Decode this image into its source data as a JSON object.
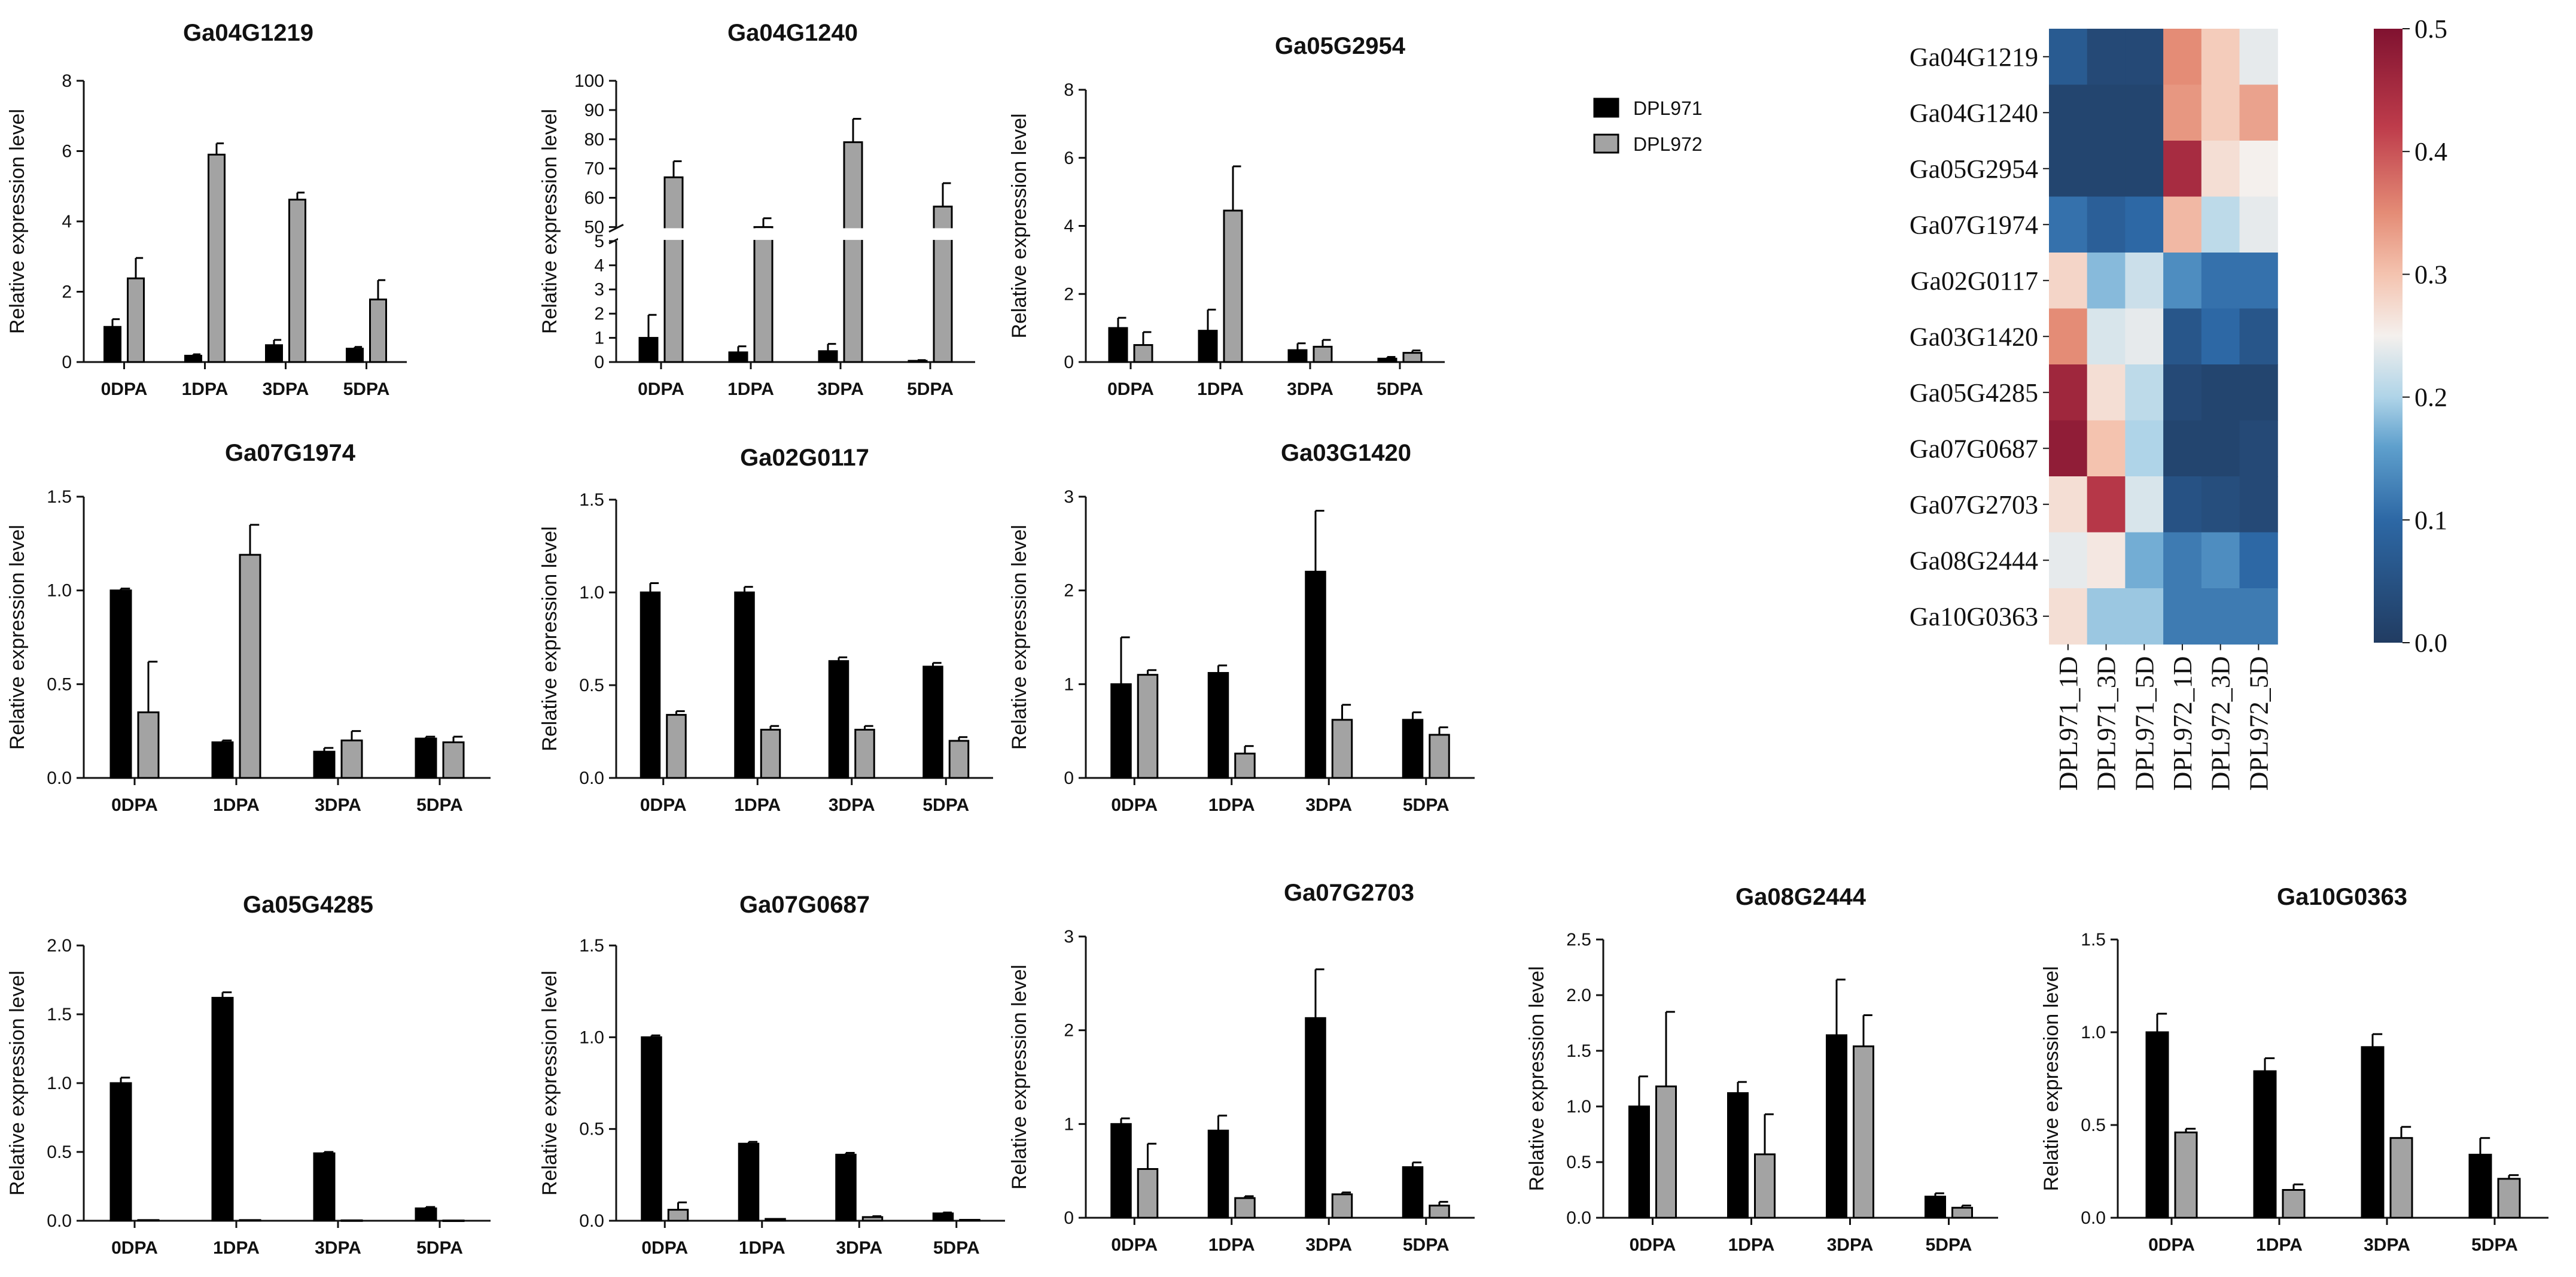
{
  "legend": {
    "series": [
      "DPL971",
      "DPL972"
    ]
  },
  "colors": {
    "DPL971": "#000000",
    "DPL972": "#a3a3a3",
    "axis": "#111111"
  },
  "chart_data": [
    {
      "type": "bar",
      "title": "Ga04G1219",
      "ylabel": "Relative expression level",
      "categories": [
        "0DPA",
        "1DPA",
        "3DPA",
        "5DPA"
      ],
      "ylim": [
        0,
        8
      ],
      "yticks": [
        0,
        2,
        4,
        6,
        8
      ],
      "series": [
        {
          "name": "DPL971",
          "values": [
            1.0,
            0.18,
            0.48,
            0.38
          ],
          "errors": [
            0.22,
            0.04,
            0.15,
            0.05
          ]
        },
        {
          "name": "DPL972",
          "values": [
            2.38,
            5.9,
            4.62,
            1.78
          ],
          "errors": [
            0.58,
            0.32,
            0.2,
            0.55
          ]
        }
      ]
    },
    {
      "type": "bar",
      "title": "Ga04G1240",
      "ylabel": "Relative expression level",
      "categories": [
        "0DPA",
        "1DPA",
        "3DPA",
        "5DPA"
      ],
      "broken_axis": true,
      "lower_ylim": [
        0,
        5
      ],
      "lower_yticks": [
        0,
        1,
        2,
        3,
        4,
        5
      ],
      "upper_ylim": [
        50,
        100
      ],
      "upper_yticks": [
        50,
        60,
        70,
        80,
        90,
        100
      ],
      "series": [
        {
          "name": "DPL971",
          "values": [
            1.0,
            0.4,
            0.45,
            0.05
          ],
          "errors": [
            0.95,
            0.25,
            0.3,
            0.03
          ]
        },
        {
          "name": "DPL972",
          "values": [
            67,
            50,
            79,
            57
          ],
          "errors": [
            5.5,
            3,
            8,
            8
          ]
        }
      ]
    },
    {
      "type": "bar",
      "title": "Ga05G2954",
      "ylabel": "Relative expression level",
      "categories": [
        "0DPA",
        "1DPA",
        "3DPA",
        "5DPA"
      ],
      "ylim": [
        0,
        8
      ],
      "yticks": [
        0,
        2,
        4,
        6,
        8
      ],
      "series": [
        {
          "name": "DPL971",
          "values": [
            1.0,
            0.92,
            0.35,
            0.1
          ],
          "errors": [
            0.3,
            0.62,
            0.2,
            0.05
          ]
        },
        {
          "name": "DPL972",
          "values": [
            0.5,
            4.45,
            0.45,
            0.27
          ],
          "errors": [
            0.38,
            1.3,
            0.2,
            0.07
          ]
        }
      ]
    },
    {
      "type": "bar",
      "title": "Ga07G1974",
      "ylabel": "Relative expression level",
      "categories": [
        "0DPA",
        "1DPA",
        "3DPA",
        "5DPA"
      ],
      "ylim": [
        0,
        1.5
      ],
      "yticks": [
        0.0,
        0.5,
        1.0,
        1.5
      ],
      "tick_decimals": 1,
      "series": [
        {
          "name": "DPL971",
          "values": [
            1.0,
            0.19,
            0.14,
            0.21
          ],
          "errors": [
            0.01,
            0.01,
            0.02,
            0.01
          ]
        },
        {
          "name": "DPL972",
          "values": [
            0.35,
            1.19,
            0.2,
            0.19
          ],
          "errors": [
            0.27,
            0.16,
            0.05,
            0.03
          ]
        }
      ]
    },
    {
      "type": "bar",
      "title": "Ga02G0117",
      "ylabel": "Relative expression level",
      "categories": [
        "0DPA",
        "1DPA",
        "3DPA",
        "5DPA"
      ],
      "ylim": [
        0,
        1.5
      ],
      "yticks": [
        0.0,
        0.5,
        1.0,
        1.5
      ],
      "tick_decimals": 1,
      "series": [
        {
          "name": "DPL971",
          "values": [
            1.0,
            1.0,
            0.63,
            0.6
          ],
          "errors": [
            0.05,
            0.03,
            0.02,
            0.02
          ]
        },
        {
          "name": "DPL972",
          "values": [
            0.34,
            0.26,
            0.26,
            0.2
          ],
          "errors": [
            0.02,
            0.02,
            0.02,
            0.02
          ]
        }
      ]
    },
    {
      "type": "bar",
      "title": "Ga03G1420",
      "ylabel": "Relative expression level",
      "categories": [
        "0DPA",
        "1DPA",
        "3DPA",
        "5DPA"
      ],
      "ylim": [
        0,
        3
      ],
      "yticks": [
        0,
        1,
        2,
        3
      ],
      "series": [
        {
          "name": "DPL971",
          "values": [
            1.0,
            1.12,
            2.2,
            0.62
          ],
          "errors": [
            0.5,
            0.08,
            0.65,
            0.08
          ]
        },
        {
          "name": "DPL972",
          "values": [
            1.1,
            0.26,
            0.62,
            0.46
          ],
          "errors": [
            0.05,
            0.08,
            0.16,
            0.08
          ]
        }
      ]
    },
    {
      "type": "bar",
      "title": "Ga05G4285",
      "ylabel": "Relative expression level",
      "categories": [
        "0DPA",
        "1DPA",
        "3DPA",
        "5DPA"
      ],
      "ylim": [
        0,
        2.0
      ],
      "yticks": [
        0.0,
        0.5,
        1.0,
        1.5,
        2.0
      ],
      "tick_decimals": 1,
      "series": [
        {
          "name": "DPL971",
          "values": [
            1.0,
            1.62,
            0.49,
            0.09
          ],
          "errors": [
            0.04,
            0.04,
            0.01,
            0.01
          ]
        },
        {
          "name": "DPL972",
          "values": [
            0.005,
            0.005,
            0.003,
            0.002
          ],
          "errors": [
            0.0,
            0.0,
            0.0,
            0.0
          ]
        }
      ]
    },
    {
      "type": "bar",
      "title": "Ga07G0687",
      "ylabel": "Relative expression level",
      "categories": [
        "0DPA",
        "1DPA",
        "3DPA",
        "5DPA"
      ],
      "ylim": [
        0,
        1.5
      ],
      "yticks": [
        0.0,
        0.5,
        1.0,
        1.5
      ],
      "tick_decimals": 1,
      "series": [
        {
          "name": "DPL971",
          "values": [
            1.0,
            0.42,
            0.36,
            0.04
          ],
          "errors": [
            0.01,
            0.01,
            0.01,
            0.005
          ]
        },
        {
          "name": "DPL972",
          "values": [
            0.06,
            0.01,
            0.02,
            0.005
          ],
          "errors": [
            0.04,
            0.0,
            0.005,
            0.0
          ]
        }
      ]
    },
    {
      "type": "bar",
      "title": "Ga07G2703",
      "ylabel": "Relative expression level",
      "categories": [
        "0DPA",
        "1DPA",
        "3DPA",
        "5DPA"
      ],
      "ylim": [
        0,
        3
      ],
      "yticks": [
        0,
        1,
        2,
        3
      ],
      "series": [
        {
          "name": "DPL971",
          "values": [
            1.0,
            0.93,
            2.13,
            0.54
          ],
          "errors": [
            0.06,
            0.16,
            0.52,
            0.05
          ]
        },
        {
          "name": "DPL972",
          "values": [
            0.52,
            0.21,
            0.25,
            0.13
          ],
          "errors": [
            0.27,
            0.02,
            0.02,
            0.04
          ]
        }
      ]
    },
    {
      "type": "bar",
      "title": "Ga08G2444",
      "ylabel": "Relative expression level",
      "categories": [
        "0DPA",
        "1DPA",
        "3DPA",
        "5DPA"
      ],
      "ylim": [
        0,
        2.5
      ],
      "yticks": [
        0.0,
        0.5,
        1.0,
        1.5,
        2.0,
        2.5
      ],
      "tick_decimals": 1,
      "series": [
        {
          "name": "DPL971",
          "values": [
            1.0,
            1.12,
            1.64,
            0.19
          ],
          "errors": [
            0.27,
            0.1,
            0.5,
            0.03
          ]
        },
        {
          "name": "DPL972",
          "values": [
            1.18,
            0.57,
            1.54,
            0.09
          ],
          "errors": [
            0.67,
            0.36,
            0.28,
            0.02
          ]
        }
      ]
    },
    {
      "type": "bar",
      "title": "Ga10G0363",
      "ylabel": "Relative expression level",
      "categories": [
        "0DPA",
        "1DPA",
        "3DPA",
        "5DPA"
      ],
      "ylim": [
        0,
        1.5
      ],
      "yticks": [
        0.0,
        0.5,
        1.0,
        1.5
      ],
      "tick_decimals": 1,
      "series": [
        {
          "name": "DPL971",
          "values": [
            1.0,
            0.79,
            0.92,
            0.34
          ],
          "errors": [
            0.1,
            0.07,
            0.07,
            0.09
          ]
        },
        {
          "name": "DPL972",
          "values": [
            0.46,
            0.15,
            0.43,
            0.21
          ],
          "errors": [
            0.02,
            0.03,
            0.06,
            0.02
          ]
        }
      ]
    },
    {
      "type": "heatmap",
      "rows": [
        "Ga04G1219",
        "Ga04G1240",
        "Ga05G2954",
        "Ga07G1974",
        "Ga02G0117",
        "Ga03G1420",
        "Ga05G4285",
        "Ga07G0687",
        "Ga07G2703",
        "Ga08G2444",
        "Ga10G0363"
      ],
      "columns": [
        "DPL971_1D",
        "DPL971_3D",
        "DPL971_5D",
        "DPL972_1D",
        "DPL972_3D",
        "DPL972_5D"
      ],
      "values": [
        [
          0.07,
          0.03,
          0.03,
          0.35,
          0.29,
          0.24
        ],
        [
          0.02,
          0.02,
          0.02,
          0.34,
          0.29,
          0.33
        ],
        [
          0.02,
          0.02,
          0.02,
          0.45,
          0.27,
          0.25
        ],
        [
          0.11,
          0.08,
          0.1,
          0.31,
          0.21,
          0.24
        ],
        [
          0.28,
          0.18,
          0.22,
          0.14,
          0.11,
          0.11
        ],
        [
          0.35,
          0.23,
          0.24,
          0.06,
          0.1,
          0.06
        ],
        [
          0.46,
          0.27,
          0.21,
          0.03,
          0.02,
          0.02
        ],
        [
          0.48,
          0.3,
          0.2,
          0.02,
          0.02,
          0.03
        ],
        [
          0.27,
          0.43,
          0.23,
          0.05,
          0.04,
          0.03
        ],
        [
          0.24,
          0.26,
          0.17,
          0.12,
          0.14,
          0.1
        ],
        [
          0.27,
          0.19,
          0.19,
          0.12,
          0.12,
          0.12
        ]
      ],
      "colorbar": {
        "min": 0.0,
        "max": 0.5,
        "ticks": [
          0.0,
          0.1,
          0.2,
          0.3,
          0.4,
          0.5
        ]
      }
    }
  ]
}
